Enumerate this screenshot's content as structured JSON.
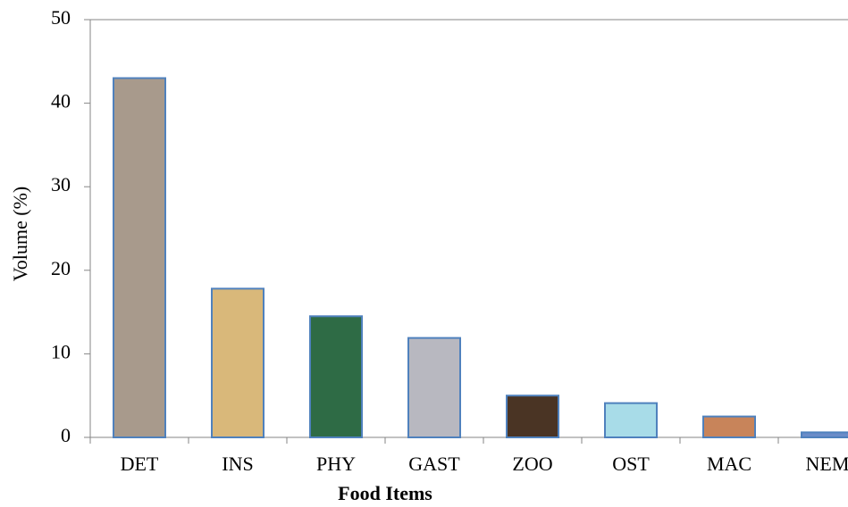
{
  "chart_data": {
    "type": "bar",
    "x_label": "Food Items",
    "y_label": "Volume (%)",
    "categories": [
      "DET",
      "INS",
      "PHY",
      "GAST",
      "ZOO",
      "OST",
      "MAC",
      "NEM"
    ],
    "values": [
      43,
      17.8,
      14.5,
      11.9,
      5,
      4.1,
      2.5,
      0.6
    ],
    "colors": [
      "#a89a8c",
      "#d9b87a",
      "#2e6b45",
      "#b8b8c0",
      "#4a3424",
      "#a8dce8",
      "#c8845a",
      "#6a8cc8"
    ],
    "edge_color": "#4f81bd",
    "ylim": [
      0,
      50
    ],
    "yticks": [
      0,
      10,
      20,
      30,
      40,
      50
    ]
  }
}
